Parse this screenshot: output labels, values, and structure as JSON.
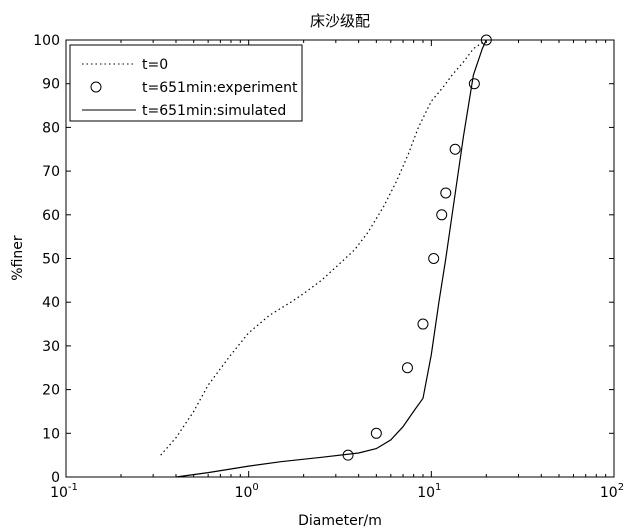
{
  "chart_data": {
    "type": "line",
    "title": "床沙级配",
    "xlabel": "Diameter/m",
    "ylabel": "%finer",
    "xscale": "log",
    "xlim": [
      0.1,
      100
    ],
    "ylim": [
      0,
      100
    ],
    "grid": false,
    "legend_position": "top-left",
    "x_ticks": [
      {
        "value": 0.1,
        "base": "10",
        "exp": "-1"
      },
      {
        "value": 1,
        "base": "10",
        "exp": "0"
      },
      {
        "value": 10,
        "base": "10",
        "exp": "1"
      },
      {
        "value": 100,
        "base": "10",
        "exp": "2"
      }
    ],
    "y_ticks": [
      "0",
      "10",
      "20",
      "30",
      "40",
      "50",
      "60",
      "70",
      "80",
      "90",
      "100"
    ],
    "series": [
      {
        "name": "t=0",
        "style": "dotted",
        "color": "#000000",
        "x": [
          0.33,
          0.4,
          0.5,
          0.6,
          0.8,
          1.0,
          1.3,
          1.7,
          2.0,
          2.5,
          3.0,
          3.8,
          4.5,
          5.5,
          6.5,
          7.5,
          8.5,
          10.0,
          11.5,
          13.0,
          15.0,
          17.0,
          20.0
        ],
        "y": [
          5,
          9,
          15,
          21,
          28,
          33,
          37,
          40,
          42,
          45,
          48,
          52,
          56,
          62,
          68,
          74,
          80,
          86,
          89,
          92,
          95,
          98,
          100
        ]
      },
      {
        "name": "t=651min:experiment",
        "style": "marker-circle",
        "color": "#000000",
        "x": [
          3.5,
          5.0,
          7.4,
          9.0,
          10.3,
          11.4,
          12.0,
          13.5,
          17.2,
          20.0
        ],
        "y": [
          5,
          10,
          25,
          35,
          50,
          60,
          65,
          75,
          90,
          100
        ]
      },
      {
        "name": "t=651min:simulated",
        "style": "solid",
        "color": "#000000",
        "x": [
          0.4,
          0.6,
          1.0,
          1.5,
          2.5,
          4.0,
          5.0,
          6.0,
          7.0,
          8.0,
          9.0,
          10.0,
          11.0,
          12.0,
          13.0,
          15.0,
          17.0,
          19.0,
          20.0
        ],
        "y": [
          0,
          1,
          2.5,
          3.5,
          4.5,
          5.5,
          6.5,
          8.5,
          11.5,
          15,
          18,
          28,
          40,
          50,
          60,
          78,
          92,
          98,
          100
        ]
      }
    ]
  }
}
